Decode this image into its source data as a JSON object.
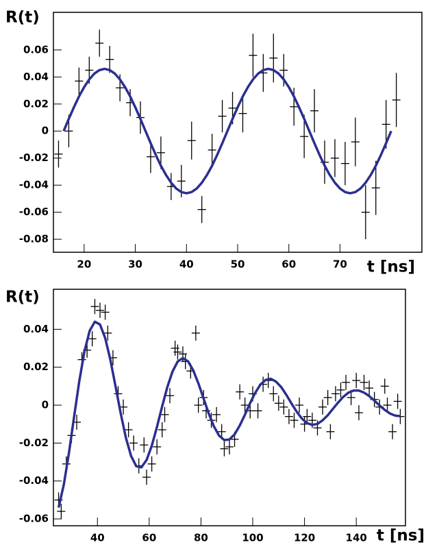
{
  "chart_data": [
    {
      "type": "errorbar",
      "ylabel": "R(t)",
      "xlabel": "t [ns]",
      "xlim": [
        14,
        86
      ],
      "ylim": [
        -0.0896,
        0.0878
      ],
      "xticks": [
        20,
        30,
        40,
        50,
        60,
        70
      ],
      "yticks": [
        0.06,
        0.04,
        0.02,
        0,
        -0.02,
        -0.04,
        -0.06,
        -0.08
      ],
      "points": {
        "color": "#000000",
        "x": [
          15,
          17,
          19,
          21,
          23,
          25,
          27,
          29,
          31,
          33,
          35,
          37,
          39,
          41,
          43,
          45,
          47,
          49,
          51,
          53,
          55,
          57,
          59,
          61,
          63,
          65,
          67,
          69,
          71,
          73,
          75,
          77,
          79,
          81
        ],
        "values": [
          -0.017,
          0.0,
          0.037,
          0.045,
          0.065,
          0.053,
          0.032,
          0.021,
          0.01,
          -0.019,
          -0.016,
          -0.041,
          -0.037,
          -0.007,
          -0.058,
          -0.014,
          0.011,
          0.017,
          0.013,
          0.056,
          0.043,
          0.054,
          0.045,
          0.018,
          -0.004,
          0.015,
          -0.023,
          -0.02,
          -0.024,
          -0.008,
          -0.06,
          -0.042,
          0.005,
          0.023
        ],
        "errors": [
          0.01,
          0.012,
          0.01,
          0.01,
          0.01,
          0.01,
          0.01,
          0.01,
          0.012,
          0.012,
          0.012,
          0.01,
          0.012,
          0.014,
          0.01,
          0.012,
          0.012,
          0.012,
          0.014,
          0.016,
          0.014,
          0.018,
          0.012,
          0.014,
          0.016,
          0.016,
          0.016,
          0.014,
          0.016,
          0.018,
          0.02,
          0.02,
          0.018,
          0.02
        ]
      },
      "fit": {
        "color": "#2b2f8f",
        "x": [
          16,
          17,
          18,
          19,
          20,
          21,
          22,
          23,
          24,
          25,
          26,
          27,
          28,
          29,
          30,
          31,
          32,
          33,
          34,
          35,
          36,
          37,
          38,
          39,
          40,
          41,
          42,
          43,
          44,
          45,
          46,
          47,
          48,
          49,
          50,
          51,
          52,
          53,
          54,
          55,
          56,
          57,
          58,
          59,
          60,
          61,
          62,
          63,
          64,
          65,
          66,
          67,
          68,
          69,
          70,
          71,
          72,
          73,
          74,
          75,
          76,
          77,
          78,
          79,
          80
        ],
        "values": [
          0,
          0.009,
          0.0176,
          0.0256,
          0.0325,
          0.0382,
          0.0425,
          0.0451,
          0.046,
          0.0451,
          0.0425,
          0.0382,
          0.0325,
          0.0256,
          0.0176,
          0.009,
          0,
          -0.009,
          -0.0176,
          -0.0256,
          -0.0325,
          -0.0382,
          -0.0425,
          -0.0451,
          -0.046,
          -0.0451,
          -0.0425,
          -0.0382,
          -0.0325,
          -0.0256,
          -0.0176,
          -0.009,
          0,
          0.009,
          0.0176,
          0.0256,
          0.0325,
          0.0382,
          0.0425,
          0.0451,
          0.046,
          0.0451,
          0.0425,
          0.0382,
          0.0325,
          0.0256,
          0.0176,
          0.009,
          0,
          -0.009,
          -0.0176,
          -0.0256,
          -0.0325,
          -0.0382,
          -0.0425,
          -0.0451,
          -0.046,
          -0.0451,
          -0.0425,
          -0.0382,
          -0.0325,
          -0.0256,
          -0.0176,
          -0.009,
          0
        ]
      }
    },
    {
      "type": "errorbar",
      "ylabel": "R(t)",
      "xlabel": "t [ns]",
      "xlim": [
        23,
        159
      ],
      "ylim": [
        -0.0636,
        0.0611
      ],
      "xticks": [
        40,
        60,
        80,
        100,
        120,
        140
      ],
      "yticks": [
        0.04,
        0.02,
        0,
        -0.02,
        -0.04,
        -0.06
      ],
      "points": {
        "color": "#000000",
        "x": [
          25,
          26,
          28,
          30,
          32,
          34,
          36,
          38,
          39,
          41,
          43,
          44,
          46,
          48,
          50,
          52,
          54,
          56,
          58,
          59,
          61,
          63,
          65,
          66,
          68,
          70,
          71,
          73,
          74,
          76,
          78,
          79,
          81,
          82,
          84,
          86,
          88,
          89,
          91,
          93,
          95,
          97,
          99,
          100,
          102,
          104,
          106,
          108,
          110,
          112,
          114,
          116,
          118,
          120,
          121,
          123,
          125,
          127,
          129,
          130,
          132,
          134,
          136,
          138,
          140,
          141,
          143,
          145,
          147,
          149,
          151,
          152,
          154,
          156,
          157
        ],
        "values": [
          -0.05,
          -0.056,
          -0.031,
          -0.016,
          -0.009,
          0.024,
          0.029,
          0.035,
          0.052,
          0.05,
          0.049,
          0.038,
          0.025,
          0.006,
          -0.001,
          -0.013,
          -0.02,
          -0.032,
          -0.021,
          -0.038,
          -0.031,
          -0.022,
          -0.013,
          -0.005,
          0.005,
          0.03,
          0.028,
          0.027,
          0.023,
          0.018,
          0.038,
          0.0,
          0.004,
          -0.003,
          -0.008,
          -0.005,
          -0.014,
          -0.023,
          -0.022,
          -0.018,
          0.007,
          0.0,
          -0.003,
          0.006,
          -0.003,
          0.011,
          0.013,
          0.006,
          0.001,
          -0.001,
          -0.006,
          -0.008,
          0.0,
          -0.01,
          -0.006,
          -0.008,
          -0.012,
          -0.001,
          0.004,
          -0.014,
          0.006,
          0.008,
          0.012,
          0.004,
          0.013,
          -0.004,
          0.012,
          0.009,
          0.003,
          -0.001,
          0.01,
          0.0,
          -0.014,
          0.002,
          -0.006
        ],
        "errors": [
          0.004,
          0.004,
          0.004,
          0.004,
          0.004,
          0.004,
          0.004,
          0.004,
          0.004,
          0.004,
          0.004,
          0.004,
          0.004,
          0.004,
          0.004,
          0.004,
          0.004,
          0.004,
          0.004,
          0.004,
          0.004,
          0.004,
          0.004,
          0.004,
          0.004,
          0.004,
          0.004,
          0.004,
          0.004,
          0.004,
          0.004,
          0.004,
          0.004,
          0.004,
          0.004,
          0.004,
          0.004,
          0.004,
          0.004,
          0.004,
          0.004,
          0.004,
          0.004,
          0.004,
          0.004,
          0.004,
          0.004,
          0.004,
          0.004,
          0.004,
          0.004,
          0.004,
          0.004,
          0.004,
          0.004,
          0.004,
          0.004,
          0.004,
          0.004,
          0.004,
          0.004,
          0.004,
          0.004,
          0.004,
          0.004,
          0.004,
          0.004,
          0.004,
          0.004,
          0.004,
          0.004,
          0.004,
          0.004,
          0.004,
          0.004
        ]
      },
      "fit": {
        "color": "#2b2f8f",
        "x": [
          25,
          27,
          29,
          31,
          33,
          35,
          37,
          39,
          41,
          43,
          45,
          47,
          49,
          51,
          53,
          55,
          57,
          59,
          61,
          63,
          65,
          67,
          69,
          71,
          73,
          75,
          77,
          79,
          81,
          83,
          85,
          87,
          89,
          91,
          93,
          95,
          97,
          99,
          101,
          103,
          105,
          107,
          109,
          111,
          113,
          115,
          117,
          119,
          121,
          123,
          125,
          127,
          129,
          131,
          133,
          135,
          137,
          139,
          141,
          143,
          145,
          147,
          149,
          151,
          153,
          155,
          157
        ],
        "values": [
          -0.054,
          -0.042,
          -0.0252,
          -0.006,
          0.0127,
          0.0284,
          0.0392,
          0.044,
          0.0425,
          0.0354,
          0.0239,
          0.0099,
          -0.0044,
          -0.0172,
          -0.0268,
          -0.0322,
          -0.0328,
          -0.0289,
          -0.0214,
          -0.0115,
          -0.0007,
          0.0095,
          0.0177,
          0.023,
          0.0248,
          0.0231,
          0.0184,
          0.0115,
          0.0035,
          -0.0044,
          -0.0112,
          -0.0161,
          -0.0184,
          -0.0181,
          -0.0154,
          -0.0107,
          -0.005,
          0.0011,
          0.0066,
          0.0109,
          0.0133,
          0.0139,
          0.0124,
          0.0095,
          0.0054,
          0.0008,
          -0.0035,
          -0.0071,
          -0.0095,
          -0.0104,
          -0.0099,
          -0.008,
          -0.0053,
          -0.0019,
          0.0014,
          0.0044,
          0.0066,
          0.0077,
          0.0077,
          0.0066,
          0.0048,
          0.0024,
          -0.0002,
          -0.0025,
          -0.0044,
          -0.0055,
          -0.0058
        ]
      }
    }
  ]
}
